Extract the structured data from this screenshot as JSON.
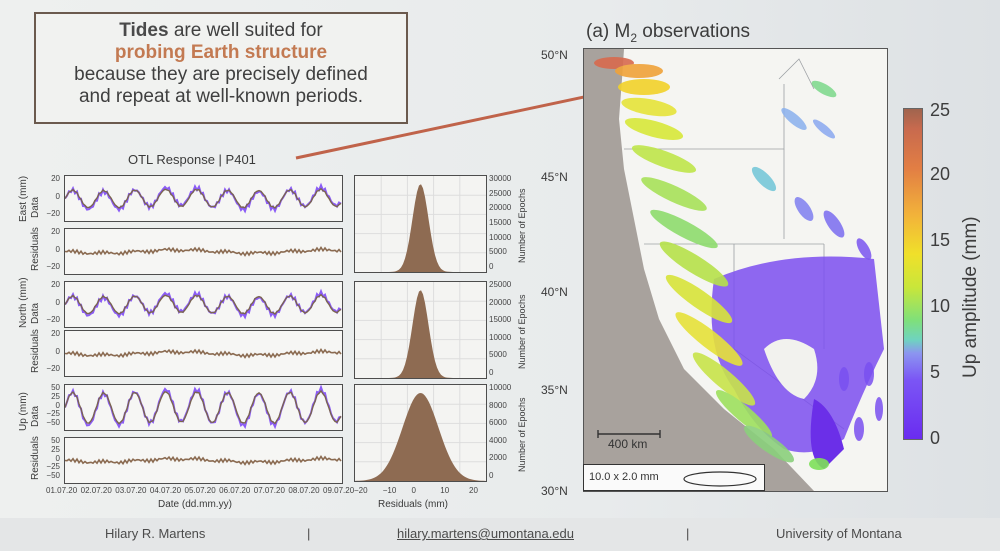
{
  "callout": {
    "line1_bold": "Tides",
    "line1_rest": " are well suited for",
    "line2_bold": "probing Earth structure",
    "line3": "because they are precisely defined",
    "line4": "and repeat at well-known periods."
  },
  "otl": {
    "title": "OTL Response | P401",
    "panels": [
      {
        "label1": "East (mm)",
        "label2": "Data",
        "yticks": [
          "20",
          "0",
          "−20"
        ]
      },
      {
        "label1": "",
        "label2": "Residuals",
        "yticks": [
          "20",
          "0",
          "−20"
        ]
      },
      {
        "label1": "North (mm)",
        "label2": "Data",
        "yticks": [
          "20",
          "0",
          "−20"
        ]
      },
      {
        "label1": "",
        "label2": "Residuals",
        "yticks": [
          "20",
          "0",
          "−20"
        ]
      },
      {
        "label1": "Up (mm)",
        "label2": "Data",
        "yticks": [
          "50",
          "25",
          "0",
          "−25",
          "−50"
        ]
      },
      {
        "label1": "",
        "label2": "Residuals",
        "yticks": [
          "50",
          "25",
          "0",
          "−25",
          "−50"
        ]
      }
    ],
    "xticks": [
      "01.07.20",
      "02.07.20",
      "03.07.20",
      "04.07.20",
      "05.07.20",
      "06.07.20",
      "07.07.20",
      "08.07.20",
      "09.07.20"
    ],
    "xlabel": "Date (dd.mm.yy)",
    "hist_panels": [
      {
        "yticks": [
          "30000",
          "25000",
          "20000",
          "15000",
          "10000",
          "5000",
          "0"
        ],
        "ylabel": "Number of Epochs"
      },
      {
        "yticks": [
          "25000",
          "20000",
          "15000",
          "10000",
          "5000",
          "0"
        ],
        "ylabel": "Number of Epochs"
      },
      {
        "yticks": [
          "10000",
          "8000",
          "6000",
          "4000",
          "2000",
          "0"
        ],
        "ylabel": "Number of Epochs"
      }
    ],
    "hist_xticks": [
      "−20",
      "−10",
      "0",
      "10",
      "20"
    ],
    "hist_xlabel": "Residuals (mm)"
  },
  "map": {
    "title_main": "(a) M",
    "title_sub": "2",
    "title_rest": " observations",
    "lat_labels": [
      "50°N",
      "45°N",
      "40°N",
      "35°N",
      "30°N"
    ],
    "scale_label": "400 km",
    "ellipse_legend": "10.0 x 2.0 mm"
  },
  "colorbar": {
    "ticks": [
      "25",
      "20",
      "15",
      "10",
      "5",
      "0"
    ],
    "label": "Up amplitude (mm)"
  },
  "footer": {
    "author": "Hilary R. Martens",
    "sep1": "|",
    "email": "hilary.martens@umontana.edu",
    "sep2": "|",
    "org": "University of Montana"
  }
}
